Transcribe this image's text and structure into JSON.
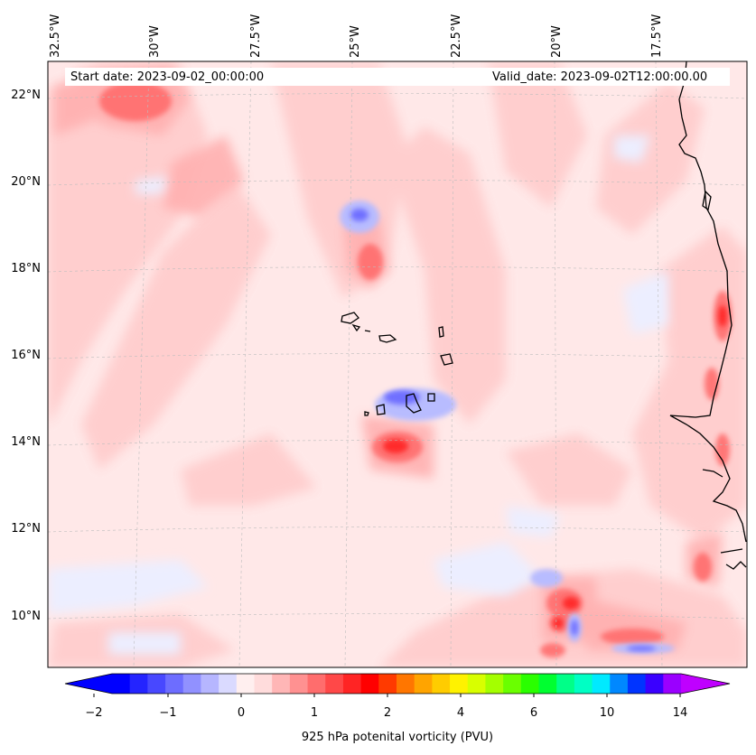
{
  "header": {
    "start_date": "Start date: 2023-09-02_00:00:00",
    "valid_date": "Valid_date: 2023-09-02T12:00:00.00"
  },
  "lon_labels": [
    "32.5°W",
    "30°W",
    "27.5°W",
    "25°W",
    "22.5°W",
    "20°W",
    "17.5°W"
  ],
  "lat_labels": [
    "22°N",
    "20°N",
    "18°N",
    "16°N",
    "14°N",
    "12°N",
    "10°N"
  ],
  "colorbar": {
    "ticks": [
      "−2",
      "−1",
      "0",
      "1",
      "2",
      "4",
      "6",
      "10",
      "14"
    ],
    "label": "925 hPa potenital vorticity (PVU)",
    "colors": [
      "#0000ff",
      "#2424ff",
      "#4848ff",
      "#6d6dff",
      "#9191ff",
      "#b6b6ff",
      "#dadaff",
      "#ffefef",
      "#ffdcdc",
      "#ffb6b6",
      "#ff9191",
      "#ff6d6d",
      "#ff4848",
      "#ff2424",
      "#ff0000",
      "#ff3a00",
      "#ff7600",
      "#ffa400",
      "#ffcc00",
      "#fff200",
      "#d8ff00",
      "#a4ff00",
      "#6aff00",
      "#2aff00",
      "#00ff30",
      "#00ff88",
      "#00ffc4",
      "#00eaff",
      "#0088ff",
      "#0034ff",
      "#3a00ff",
      "#9a00ff"
    ],
    "under_color": "#0000ff",
    "over_color": "#bf00ff"
  },
  "colors": {
    "background": "#ffe8e8",
    "light_pink": "#ffd2d2",
    "pink": "#ffb0b0",
    "red": "#ff6d6d",
    "deep_red": "#ff3030",
    "light_blue": "#eceeff",
    "blue": "#aab0ff",
    "deep_blue": "#6d6dff",
    "coast": "#000000"
  }
}
